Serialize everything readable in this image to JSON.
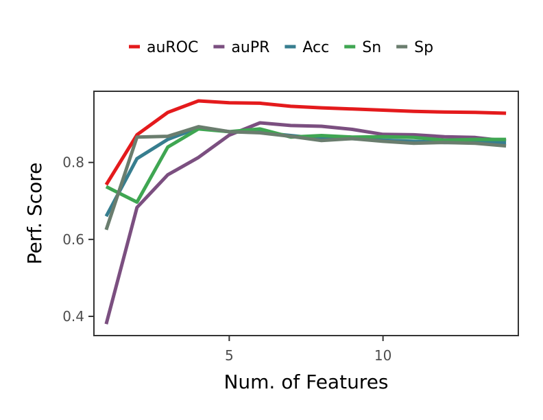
{
  "chart_data": {
    "type": "line",
    "title": "",
    "xlabel": "Num. of Features",
    "ylabel": "Perf. Score",
    "xlim": [
      0.6,
      14.4
    ],
    "ylim": [
      0.35,
      0.985
    ],
    "x_ticks": [
      5,
      10
    ],
    "x_tick_labels": [
      "5",
      "10"
    ],
    "y_ticks": [
      0.4,
      0.6,
      0.8
    ],
    "y_tick_labels": [
      "0.4",
      "0.6",
      "0.8"
    ],
    "grid": false,
    "legend_position": "top",
    "x": [
      1,
      2,
      3,
      4,
      5,
      6,
      7,
      8,
      9,
      10,
      11,
      12,
      13,
      14
    ],
    "series": [
      {
        "name": "auROC",
        "color": "#e41a1c",
        "values": [
          0.742,
          0.872,
          0.93,
          0.96,
          0.955,
          0.954,
          0.946,
          0.942,
          0.939,
          0.936,
          0.933,
          0.931,
          0.93,
          0.928
        ]
      },
      {
        "name": "auPR",
        "color": "#7b4f80",
        "values": [
          0.38,
          0.683,
          0.768,
          0.813,
          0.871,
          0.903,
          0.896,
          0.894,
          0.886,
          0.873,
          0.872,
          0.867,
          0.865,
          0.856
        ]
      },
      {
        "name": "Acc",
        "color": "#377e8f",
        "values": [
          0.66,
          0.81,
          0.86,
          0.89,
          0.88,
          0.878,
          0.87,
          0.862,
          0.862,
          0.858,
          0.855,
          0.852,
          0.852,
          0.852
        ]
      },
      {
        "name": "Sn",
        "color": "#3fa652",
        "values": [
          0.737,
          0.697,
          0.84,
          0.887,
          0.88,
          0.887,
          0.866,
          0.87,
          0.866,
          0.867,
          0.865,
          0.858,
          0.86,
          0.86
        ]
      },
      {
        "name": "Sp",
        "color": "#6a7d6e",
        "values": [
          0.625,
          0.866,
          0.868,
          0.893,
          0.88,
          0.877,
          0.868,
          0.857,
          0.862,
          0.855,
          0.85,
          0.852,
          0.85,
          0.843
        ]
      }
    ]
  }
}
